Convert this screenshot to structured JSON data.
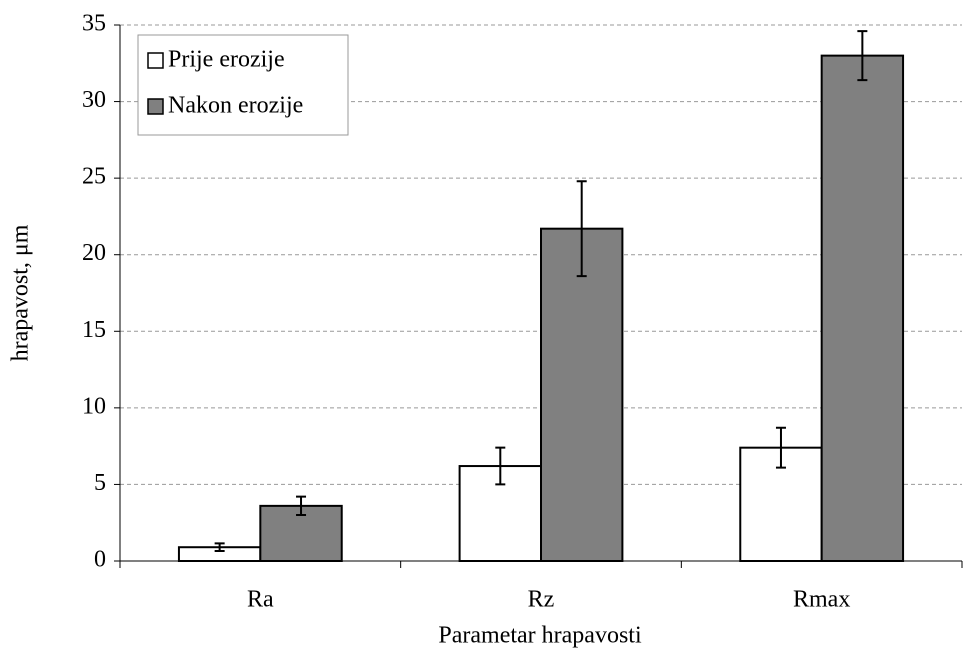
{
  "chart_data": {
    "type": "bar",
    "x_label": "Parametar hrapavosti",
    "y_label": "hrapavost,  μm",
    "categories": [
      "Ra",
      "Rz",
      "Rmax"
    ],
    "series": [
      {
        "name": "Prije erozije",
        "color": "#ffffff",
        "values": [
          0.9,
          6.2,
          7.4
        ],
        "errors": [
          0.25,
          1.2,
          1.3
        ]
      },
      {
        "name": "Nakon erozije",
        "color": "#808080",
        "values": [
          3.6,
          21.7,
          33.0
        ],
        "errors": [
          0.6,
          3.1,
          1.6
        ]
      }
    ],
    "ylim": [
      0,
      35
    ],
    "yticks": [
      0,
      5,
      10,
      15,
      20,
      25,
      30,
      35
    ],
    "grid": true,
    "legend": "upper left"
  }
}
